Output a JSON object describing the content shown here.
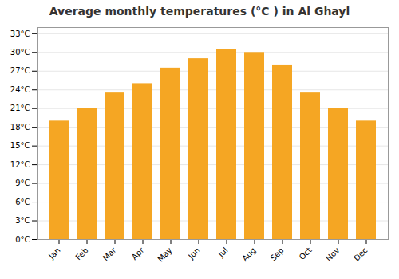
{
  "chart_data": {
    "type": "bar",
    "title": "Average monthly temperatures (°C ) in Al Ghayl",
    "categories": [
      "Jan",
      "Feb",
      "Mar",
      "Apr",
      "May",
      "Jun",
      "Jul",
      "Aug",
      "Sep",
      "Oct",
      "Nov",
      "Dec"
    ],
    "values": [
      19.0,
      21.0,
      23.5,
      25.0,
      27.5,
      29.0,
      30.5,
      30.0,
      28.0,
      23.5,
      21.0,
      19.0
    ],
    "color": "#F5A623",
    "ylim": [
      0,
      34
    ],
    "yticks": [
      {
        "value": 0,
        "label": "0°C"
      },
      {
        "value": 3,
        "label": "3°C"
      },
      {
        "value": 6,
        "label": "6°C"
      },
      {
        "value": 9,
        "label": "9°C"
      },
      {
        "value": 12,
        "label": "12°C"
      },
      {
        "value": 15,
        "label": "15°C"
      },
      {
        "value": 18,
        "label": "18°C"
      },
      {
        "value": 21,
        "label": "21°C"
      },
      {
        "value": 24,
        "label": "24°C"
      },
      {
        "value": 27,
        "label": "27°C"
      },
      {
        "value": 30,
        "label": "30°C"
      },
      {
        "value": 33,
        "label": "33°C"
      }
    ],
    "grid": true
  }
}
